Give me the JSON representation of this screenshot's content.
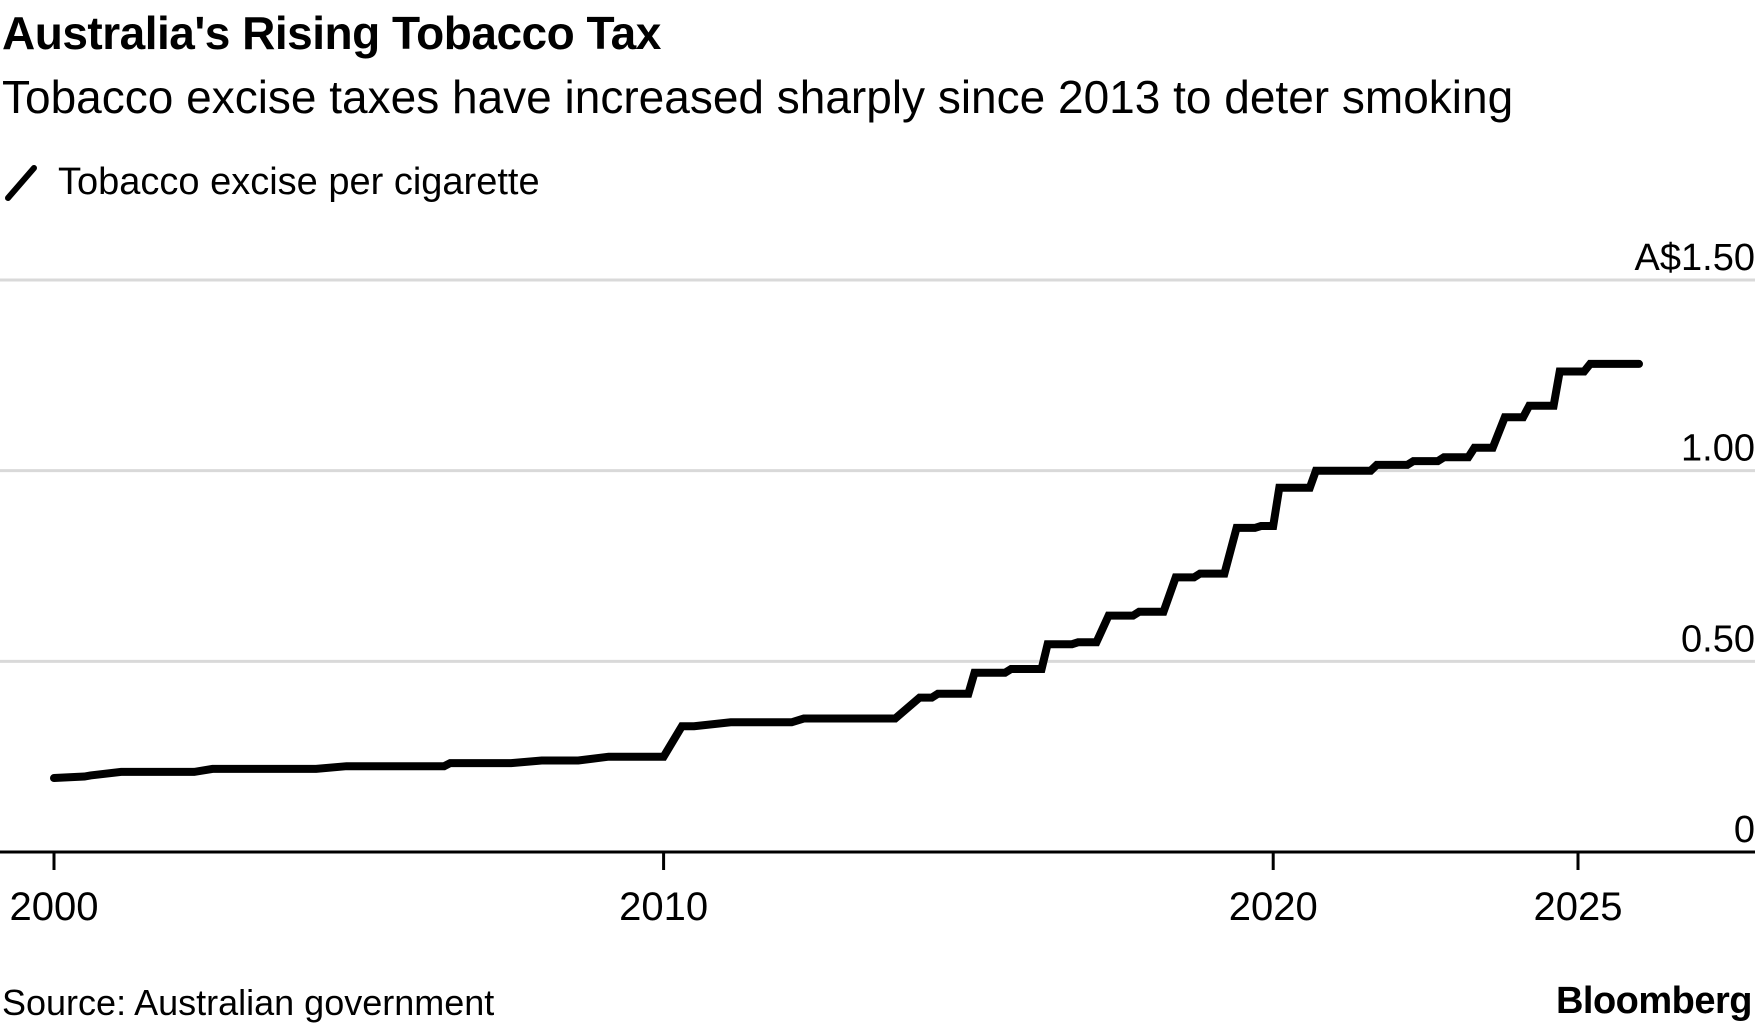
{
  "header": {
    "title": "Australia's Rising Tobacco Tax",
    "subtitle": "Tobacco excise taxes have increased sharply since 2013 to deter smoking"
  },
  "footer": {
    "source": "Source: Australian government",
    "brand": "Bloomberg"
  },
  "chart_data": {
    "type": "line",
    "title": "Australia's Rising Tobacco Tax",
    "subtitle": "Tobacco excise taxes have increased sharply since 2013 to deter smoking",
    "xlabel": "",
    "ylabel": "",
    "xlim": [
      2000,
      2026.2
    ],
    "ylim": [
      0,
      1.5
    ],
    "x_ticks": [
      2000,
      2010,
      2020,
      2025
    ],
    "x_tick_labels": [
      "2000",
      "2010",
      "2020",
      "2025"
    ],
    "y_ticks": [
      0,
      0.5,
      1.0,
      1.5
    ],
    "y_tick_labels": [
      "0",
      "0.50",
      "1.00",
      "A$1.50"
    ],
    "grid": true,
    "legend_position": "top-left",
    "line_color": "#000000",
    "grid_color": "#d9d9d9",
    "series": [
      {
        "name": "Tobacco excise per cigarette",
        "points": [
          [
            2000.0,
            0.194
          ],
          [
            2000.5,
            0.198
          ],
          [
            2000.6,
            0.201
          ],
          [
            2001.1,
            0.21
          ],
          [
            2002.3,
            0.21
          ],
          [
            2002.6,
            0.218
          ],
          [
            2004.3,
            0.218
          ],
          [
            2004.8,
            0.225
          ],
          [
            2006.4,
            0.225
          ],
          [
            2006.5,
            0.233
          ],
          [
            2007.5,
            0.233
          ],
          [
            2008.0,
            0.24
          ],
          [
            2008.6,
            0.24
          ],
          [
            2009.1,
            0.25
          ],
          [
            2010.0,
            0.25
          ],
          [
            2010.3,
            0.33
          ],
          [
            2010.5,
            0.33
          ],
          [
            2011.1,
            0.34
          ],
          [
            2012.1,
            0.34
          ],
          [
            2012.3,
            0.35
          ],
          [
            2013.8,
            0.35
          ],
          [
            2014.2,
            0.405
          ],
          [
            2014.4,
            0.405
          ],
          [
            2014.5,
            0.415
          ],
          [
            2015.0,
            0.415
          ],
          [
            2015.1,
            0.47
          ],
          [
            2015.6,
            0.47
          ],
          [
            2015.7,
            0.48
          ],
          [
            2016.2,
            0.48
          ],
          [
            2016.3,
            0.545
          ],
          [
            2016.7,
            0.545
          ],
          [
            2016.8,
            0.55
          ],
          [
            2017.1,
            0.55
          ],
          [
            2017.3,
            0.62
          ],
          [
            2017.7,
            0.62
          ],
          [
            2017.8,
            0.63
          ],
          [
            2018.2,
            0.63
          ],
          [
            2018.4,
            0.72
          ],
          [
            2018.7,
            0.72
          ],
          [
            2018.8,
            0.73
          ],
          [
            2019.2,
            0.73
          ],
          [
            2019.4,
            0.85
          ],
          [
            2019.7,
            0.85
          ],
          [
            2019.8,
            0.855
          ],
          [
            2020.0,
            0.855
          ],
          [
            2020.1,
            0.955
          ],
          [
            2020.6,
            0.955
          ],
          [
            2020.7,
            1.0
          ],
          [
            2021.6,
            1.0
          ],
          [
            2021.7,
            1.015
          ],
          [
            2022.2,
            1.015
          ],
          [
            2022.3,
            1.025
          ],
          [
            2022.7,
            1.025
          ],
          [
            2022.8,
            1.035
          ],
          [
            2023.2,
            1.035
          ],
          [
            2023.3,
            1.06
          ],
          [
            2023.6,
            1.06
          ],
          [
            2023.8,
            1.14
          ],
          [
            2024.1,
            1.14
          ],
          [
            2024.2,
            1.17
          ],
          [
            2024.6,
            1.17
          ],
          [
            2024.7,
            1.26
          ],
          [
            2025.1,
            1.26
          ],
          [
            2025.2,
            1.28
          ],
          [
            2025.7,
            1.28
          ],
          [
            2026.0,
            1.28
          ]
        ]
      }
    ]
  }
}
